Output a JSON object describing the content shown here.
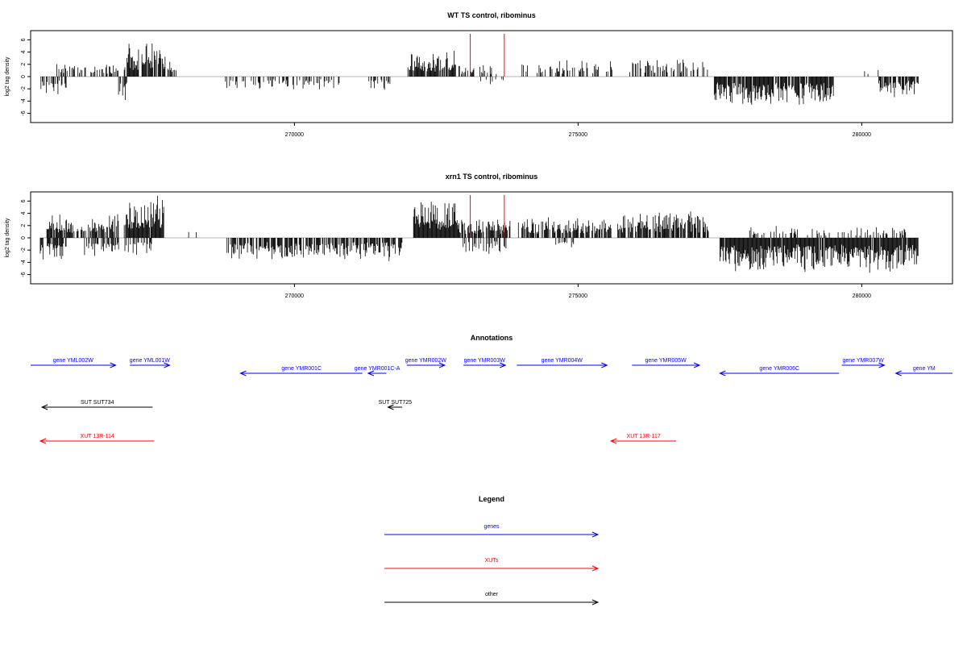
{
  "chart_data": [
    {
      "type": "bar",
      "title": "WT TS control, ribominus",
      "ylabel": "log2 tag density",
      "xlim": [
        265350,
        281600
      ],
      "ylim": [
        -7.5,
        7.5
      ],
      "yticks": [
        -6,
        -4,
        -2,
        0,
        2,
        4,
        6
      ],
      "xticks": [
        270000,
        275000,
        280000
      ],
      "grid": false,
      "markers": [
        273100,
        273700
      ],
      "regions": [
        {
          "from": 265520,
          "to": 265980,
          "sign": -1,
          "amp": 2.4,
          "density": 0.55
        },
        {
          "from": 265800,
          "to": 266900,
          "sign": 1,
          "amp": 1.6,
          "density": 0.5
        },
        {
          "from": 266900,
          "to": 267050,
          "sign": -1,
          "amp": 2.8,
          "density": 0.5
        },
        {
          "from": 267000,
          "to": 267720,
          "sign": 1,
          "amp": 4.2,
          "density": 0.85
        },
        {
          "from": 267720,
          "to": 267950,
          "sign": 1,
          "amp": 2.2,
          "density": 0.5
        },
        {
          "from": 268700,
          "to": 270900,
          "sign": -1,
          "amp": 1.6,
          "density": 0.3
        },
        {
          "from": 271300,
          "to": 271700,
          "sign": -1,
          "amp": 1.6,
          "density": 0.35
        },
        {
          "from": 272000,
          "to": 272850,
          "sign": 1,
          "amp": 3.2,
          "density": 0.95
        },
        {
          "from": 272850,
          "to": 273600,
          "sign": 1,
          "amp": 1.6,
          "density": 0.3
        },
        {
          "from": 273200,
          "to": 273700,
          "sign": -1,
          "amp": 1.2,
          "density": 0.15
        },
        {
          "from": 274000,
          "to": 275600,
          "sign": 1,
          "amp": 2.0,
          "density": 0.35
        },
        {
          "from": 275900,
          "to": 277300,
          "sign": 1,
          "amp": 2.2,
          "density": 0.4
        },
        {
          "from": 277400,
          "to": 279500,
          "sign": -1,
          "amp": 3.5,
          "density": 0.8
        },
        {
          "from": 280050,
          "to": 280400,
          "sign": 1,
          "amp": 1.2,
          "density": 0.2
        },
        {
          "from": 280300,
          "to": 281000,
          "sign": -1,
          "amp": 2.5,
          "density": 0.7
        }
      ]
    },
    {
      "type": "bar",
      "title": "xrn1 TS control, ribominus",
      "ylabel": "log2 tag density",
      "xlim": [
        265350,
        281600
      ],
      "ylim": [
        -7.5,
        7.5
      ],
      "yticks": [
        -6,
        -4,
        -2,
        0,
        2,
        4,
        6
      ],
      "xticks": [
        270000,
        275000,
        280000
      ],
      "grid": false,
      "markers": [
        273100,
        273700
      ],
      "regions": [
        {
          "from": 265520,
          "to": 266000,
          "sign": -1,
          "amp": 3.0,
          "density": 0.7
        },
        {
          "from": 265600,
          "to": 266900,
          "sign": 1,
          "amp": 3.0,
          "density": 0.6
        },
        {
          "from": 266300,
          "to": 266900,
          "sign": -1,
          "amp": 2.5,
          "density": 0.5
        },
        {
          "from": 267000,
          "to": 267700,
          "sign": 1,
          "amp": 5.0,
          "density": 0.95
        },
        {
          "from": 267000,
          "to": 267500,
          "sign": -1,
          "amp": 2.2,
          "density": 0.5
        },
        {
          "from": 268100,
          "to": 268450,
          "sign": 1,
          "amp": 1.5,
          "density": 0.2
        },
        {
          "from": 268800,
          "to": 271900,
          "sign": -1,
          "amp": 2.8,
          "density": 0.75
        },
        {
          "from": 272100,
          "to": 272900,
          "sign": 1,
          "amp": 4.8,
          "density": 1.0
        },
        {
          "from": 272900,
          "to": 273800,
          "sign": 1,
          "amp": 2.5,
          "density": 0.7
        },
        {
          "from": 272950,
          "to": 273750,
          "sign": -1,
          "amp": 2.0,
          "density": 0.4
        },
        {
          "from": 273900,
          "to": 275600,
          "sign": 1,
          "amp": 2.6,
          "density": 0.65
        },
        {
          "from": 274500,
          "to": 275000,
          "sign": -1,
          "amp": 1.5,
          "density": 0.25
        },
        {
          "from": 275700,
          "to": 277300,
          "sign": 1,
          "amp": 3.2,
          "density": 0.8
        },
        {
          "from": 277500,
          "to": 281000,
          "sign": -1,
          "amp": 4.2,
          "density": 0.95
        },
        {
          "from": 278000,
          "to": 280800,
          "sign": 1,
          "amp": 1.4,
          "density": 0.3
        }
      ]
    }
  ],
  "annotations": {
    "title": "Annotations",
    "items": [
      {
        "label": "gene YML002W",
        "from": 265350,
        "to": 266850,
        "dir": "right",
        "color": "#0000ff",
        "row": 0
      },
      {
        "label": "gene YML001W",
        "from": 267100,
        "to": 267800,
        "dir": "right",
        "color": "#0000ff",
        "row": 0
      },
      {
        "label": "gene YMR001C",
        "from": 269050,
        "to": 271200,
        "dir": "left",
        "color": "#0000ff",
        "row": 1
      },
      {
        "label": "gene YMR001C-A",
        "from": 271300,
        "to": 271620,
        "dir": "left",
        "color": "#0000ff",
        "row": 1
      },
      {
        "label": "gene YMR002W",
        "from": 271980,
        "to": 272650,
        "dir": "right",
        "color": "#0000ff",
        "row": 0
      },
      {
        "label": "gene YMR003W",
        "from": 272980,
        "to": 273720,
        "dir": "right",
        "color": "#0000ff",
        "row": 0
      },
      {
        "label": "gene YMR004W",
        "from": 273920,
        "to": 275510,
        "dir": "right",
        "color": "#0000ff",
        "row": 0
      },
      {
        "label": "gene YMR005W",
        "from": 275950,
        "to": 277140,
        "dir": "right",
        "color": "#0000ff",
        "row": 0
      },
      {
        "label": "gene YMR006C",
        "from": 277500,
        "to": 279600,
        "dir": "left",
        "color": "#0000ff",
        "row": 1
      },
      {
        "label": "gene YMR007W",
        "from": 279650,
        "to": 280400,
        "dir": "right",
        "color": "#0000ff",
        "row": 0
      },
      {
        "label": "gene YM",
        "from": 280600,
        "to": 281600,
        "dir": "left",
        "color": "#0000ff",
        "row": 1
      },
      {
        "label": "SUT SUT734",
        "from": 265550,
        "to": 267500,
        "dir": "left",
        "color": "#000000",
        "row": 2
      },
      {
        "label": "SUT SUT725",
        "from": 271650,
        "to": 271900,
        "dir": "left",
        "color": "#000000",
        "row": 2
      },
      {
        "label": "XUT 13R-114",
        "from": 265520,
        "to": 267530,
        "dir": "left",
        "color": "#ff0000",
        "row": 3
      },
      {
        "label": "XUT 13R-117",
        "from": 275580,
        "to": 276730,
        "dir": "left",
        "color": "#ff0000",
        "row": 3
      }
    ]
  },
  "legend": {
    "title": "Legend",
    "items": [
      {
        "label": "genes",
        "color": "#0000ff"
      },
      {
        "label": "XUTs",
        "color": "#ff0000"
      },
      {
        "label": "other",
        "color": "#000000"
      }
    ]
  }
}
